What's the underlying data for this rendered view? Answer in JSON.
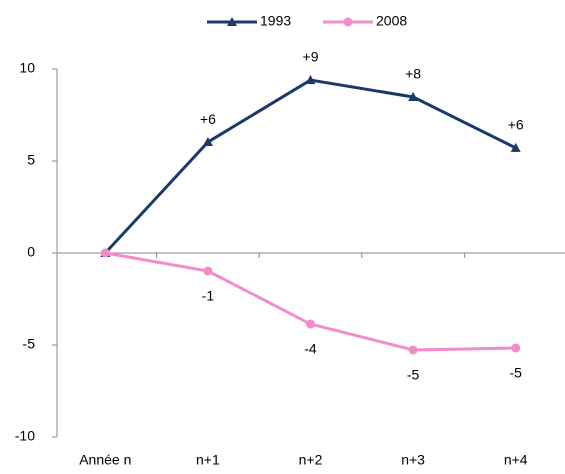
{
  "chart_data": {
    "type": "line",
    "categories": [
      "Année n",
      "n+1",
      "n+2",
      "n+3",
      "n+4"
    ],
    "series": [
      {
        "name": "1993",
        "color": "#1b3a6b",
        "marker": "triangle",
        "values": [
          0,
          6.03,
          9.4,
          8.48,
          5.71
        ],
        "value_labels": [
          null,
          "+6",
          "+9",
          "+8",
          "+6"
        ],
        "label_position": "above"
      },
      {
        "name": "2008",
        "color": "#f28ccc",
        "marker": "circle",
        "values": [
          0,
          -0.98,
          -3.86,
          -5.27,
          -5.16
        ],
        "value_labels": [
          null,
          "-1",
          "-4",
          "-5",
          "-5"
        ],
        "label_position": "below"
      }
    ],
    "ylim": [
      -10,
      10
    ],
    "yticks": [
      -10,
      -5,
      0,
      5,
      10
    ],
    "grid": false,
    "legend": "top"
  }
}
